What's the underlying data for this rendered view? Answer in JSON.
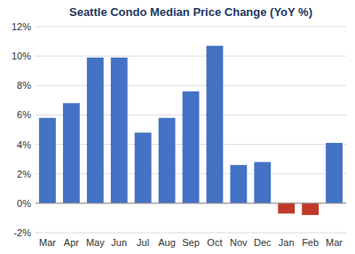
{
  "chart_data": {
    "type": "bar",
    "title": "Seattle Condo Median Price Change (YoY %)",
    "categories": [
      "Mar",
      "Apr",
      "May",
      "Jun",
      "Jul",
      "Aug",
      "Sep",
      "Oct",
      "Nov",
      "Dec",
      "Jan",
      "Feb",
      "Mar"
    ],
    "values": [
      5.8,
      6.8,
      9.9,
      9.9,
      4.8,
      5.8,
      7.6,
      10.7,
      2.6,
      2.8,
      -0.7,
      -0.8,
      4.1
    ],
    "colors": [
      "#4472C4",
      "#4472C4",
      "#4472C4",
      "#4472C4",
      "#4472C4",
      "#4472C4",
      "#4472C4",
      "#4472C4",
      "#4472C4",
      "#4472C4",
      "#C0392B",
      "#C0392B",
      "#4472C4"
    ],
    "ylim": [
      -2,
      12
    ],
    "yticks": [
      {
        "value": -2,
        "label": "-2%"
      },
      {
        "value": 0,
        "label": "0%"
      },
      {
        "value": 2,
        "label": "2%"
      },
      {
        "value": 4,
        "label": "4%"
      },
      {
        "value": 6,
        "label": "6%"
      },
      {
        "value": 8,
        "label": "8%"
      },
      {
        "value": 10,
        "label": "10%"
      },
      {
        "value": 12,
        "label": "12%"
      }
    ],
    "grid": true
  }
}
